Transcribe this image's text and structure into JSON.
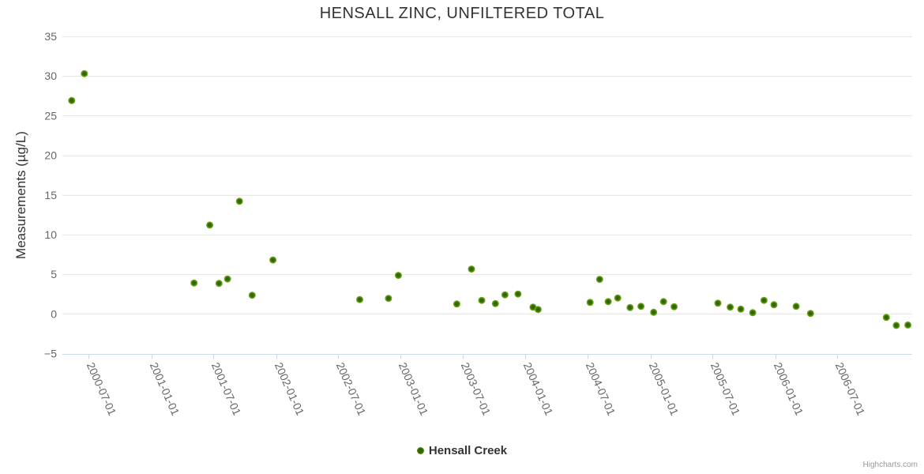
{
  "chart_data": {
    "type": "scatter",
    "title": "HENSALL ZINC, UNFILTERED TOTAL",
    "xlabel": "",
    "ylabel": "Measurements (µg/L)",
    "ylim": [
      -5,
      35
    ],
    "y_ticks": [
      35,
      30,
      25,
      20,
      15,
      10,
      5,
      0,
      -5
    ],
    "x_ticks": [
      "2000-07-01",
      "2001-01-01",
      "2001-07-01",
      "2002-01-01",
      "2002-07-01",
      "2003-01-01",
      "2003-07-01",
      "2004-01-01",
      "2004-07-01",
      "2005-01-01",
      "2005-07-01",
      "2006-01-01",
      "2006-07-01"
    ],
    "grid": true,
    "legend_position": "bottom-center",
    "series": [
      {
        "name": "Hensall Creek",
        "points": [
          {
            "x": "2000-05-13",
            "y": 26.9
          },
          {
            "x": "2000-06-19",
            "y": 30.3
          },
          {
            "x": "2001-05-06",
            "y": 3.9
          },
          {
            "x": "2001-06-21",
            "y": 11.2
          },
          {
            "x": "2001-07-18",
            "y": 3.85
          },
          {
            "x": "2001-08-12",
            "y": 4.4
          },
          {
            "x": "2001-09-16",
            "y": 14.2
          },
          {
            "x": "2001-10-23",
            "y": 2.35
          },
          {
            "x": "2001-12-23",
            "y": 6.8
          },
          {
            "x": "2002-09-03",
            "y": 1.8
          },
          {
            "x": "2002-11-26",
            "y": 1.95
          },
          {
            "x": "2002-12-25",
            "y": 4.85
          },
          {
            "x": "2003-06-14",
            "y": 1.25
          },
          {
            "x": "2003-07-27",
            "y": 5.65
          },
          {
            "x": "2003-08-26",
            "y": 1.7
          },
          {
            "x": "2003-10-05",
            "y": 1.3
          },
          {
            "x": "2003-11-02",
            "y": 2.4
          },
          {
            "x": "2003-12-10",
            "y": 2.5
          },
          {
            "x": "2004-01-23",
            "y": 0.85
          },
          {
            "x": "2004-02-07",
            "y": 0.55
          },
          {
            "x": "2004-07-08",
            "y": 1.45
          },
          {
            "x": "2004-08-05",
            "y": 4.35
          },
          {
            "x": "2004-08-30",
            "y": 1.55
          },
          {
            "x": "2004-09-27",
            "y": 2.0
          },
          {
            "x": "2004-11-02",
            "y": 0.8
          },
          {
            "x": "2004-12-04",
            "y": 0.95
          },
          {
            "x": "2005-01-10",
            "y": 0.2
          },
          {
            "x": "2005-02-08",
            "y": 1.55
          },
          {
            "x": "2005-03-11",
            "y": 0.9
          },
          {
            "x": "2005-07-17",
            "y": 1.35
          },
          {
            "x": "2005-08-22",
            "y": 0.85
          },
          {
            "x": "2005-09-22",
            "y": 0.6
          },
          {
            "x": "2005-10-27",
            "y": 0.15
          },
          {
            "x": "2005-11-29",
            "y": 1.7
          },
          {
            "x": "2005-12-28",
            "y": 1.15
          },
          {
            "x": "2006-03-03",
            "y": 0.95
          },
          {
            "x": "2006-04-14",
            "y": 0.05
          },
          {
            "x": "2006-11-22",
            "y": -0.45
          },
          {
            "x": "2006-12-21",
            "y": -1.45
          },
          {
            "x": "2007-01-24",
            "y": -1.4
          }
        ]
      }
    ]
  },
  "credits": {
    "label": "Highcharts.com"
  },
  "colors": {
    "series_green_edge": "#7cb51e",
    "series_green_core": "#2f6400",
    "grid_line": "#e6e6e6",
    "axis_line": "#ccd6eb",
    "axis_label": "#666666",
    "title_text": "#333333",
    "legend_text": "#333333",
    "credits_text": "#999999"
  }
}
